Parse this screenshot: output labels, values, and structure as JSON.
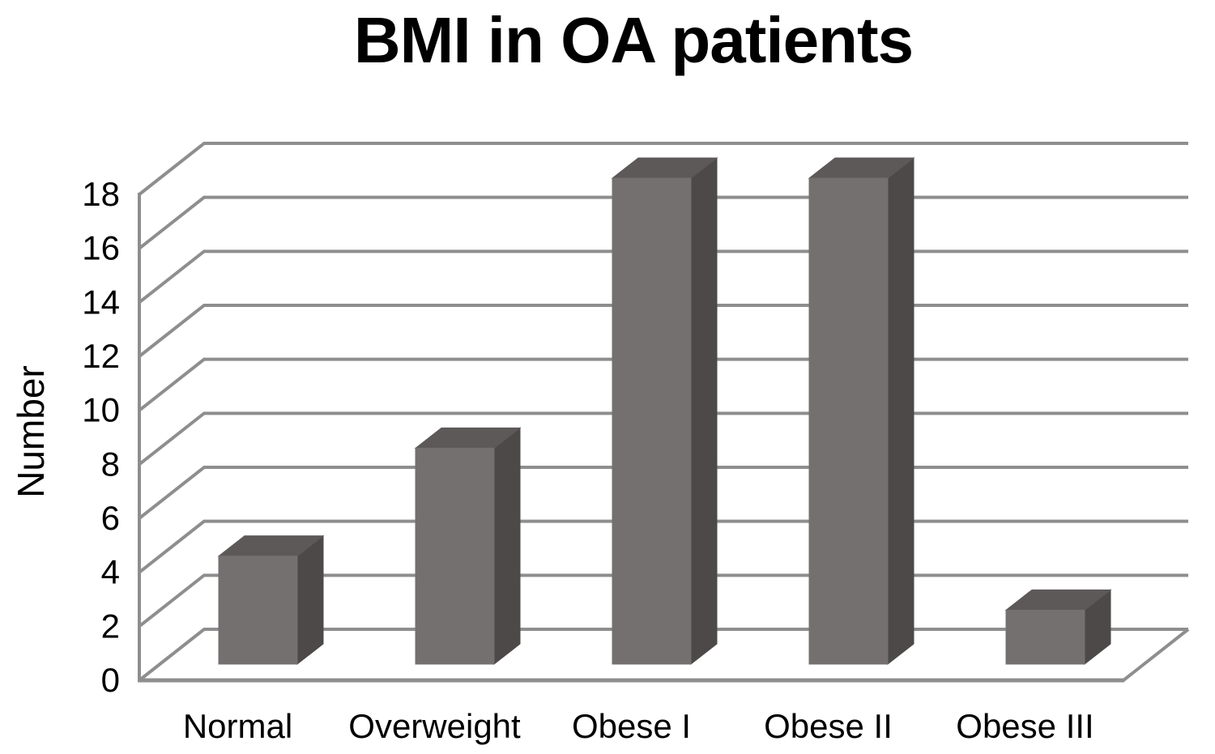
{
  "chart_data": {
    "type": "bar",
    "style": "3d-column",
    "title": "BMI in OA patients",
    "ylabel": "Number",
    "xlabel": "",
    "categories": [
      "Normal",
      "Overweight",
      "Obese I",
      "Obese II",
      "Obese III"
    ],
    "values": [
      4,
      8,
      18,
      18,
      2
    ],
    "yticks": [
      0,
      2,
      4,
      6,
      8,
      10,
      12,
      14,
      16,
      18
    ],
    "ylim": [
      0,
      18
    ],
    "grid": true,
    "legend": false,
    "colors": {
      "bar_front": "#747070",
      "bar_top": "#5d5959",
      "bar_side": "#4d4949",
      "gridline": "#8e8e8e",
      "text": "#000000",
      "background": "#ffffff"
    }
  }
}
